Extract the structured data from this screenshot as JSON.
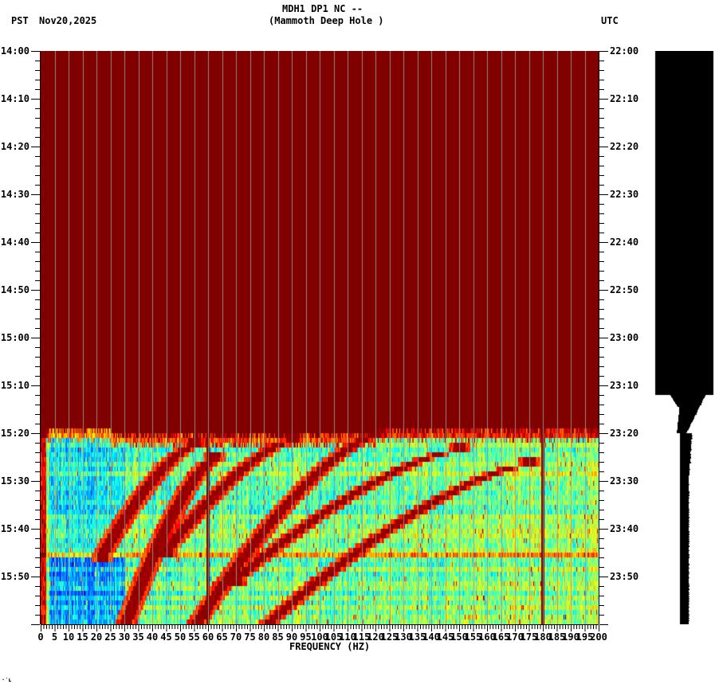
{
  "header": {
    "title_line1": "MDH1 DP1 NC --",
    "title_line2": "(Mammoth Deep Hole )",
    "left_timezone": "PST",
    "date": "Nov20,2025",
    "right_timezone": "UTC"
  },
  "footer": {
    "corner_mark": "·′ʟ"
  },
  "chart_data": {
    "type": "heatmap",
    "title": "MDH1 DP1 NC -- (Mammoth Deep Hole )",
    "xlabel": "FREQUENCY (HZ)",
    "ylabel_left": "PST",
    "ylabel_right": "UTC",
    "xlim": [
      0,
      200
    ],
    "x_ticks": [
      0,
      5,
      10,
      15,
      20,
      25,
      30,
      35,
      40,
      45,
      50,
      55,
      60,
      65,
      70,
      75,
      80,
      85,
      90,
      95,
      100,
      105,
      110,
      115,
      120,
      125,
      130,
      135,
      140,
      145,
      150,
      155,
      160,
      165,
      170,
      175,
      180,
      185,
      190,
      195,
      200
    ],
    "x_minor_tick_step": 1,
    "y_ticks_left": [
      "14:00",
      "14:10",
      "14:20",
      "14:30",
      "14:40",
      "14:50",
      "15:00",
      "15:10",
      "15:20",
      "15:30",
      "15:40",
      "15:50"
    ],
    "y_ticks_right": [
      "22:00",
      "22:10",
      "22:20",
      "22:30",
      "22:40",
      "22:50",
      "23:00",
      "23:10",
      "23:20",
      "23:30",
      "23:40",
      "23:50"
    ],
    "y_minor_tick_step_min": 2,
    "time_span_min": 120,
    "grid": "vertical lines every 5 Hz",
    "colormap": "jet",
    "saturated_color": "#800000",
    "no_data_until_min": 78,
    "data_onset_min": 78,
    "onset_ragged_low_freq_min": 84,
    "persistent_lines_hz": [
      60,
      180
    ],
    "harmonic_sweeps": [
      {
        "start_hz": 22,
        "end_hz": 55,
        "t_start_min": 105,
        "t_end_min": 82
      },
      {
        "start_hz": 30,
        "end_hz": 62,
        "t_start_min": 120,
        "t_end_min": 85
      },
      {
        "start_hz": 45,
        "end_hz": 90,
        "t_start_min": 104,
        "t_end_min": 81
      },
      {
        "start_hz": 55,
        "end_hz": 120,
        "t_start_min": 120,
        "t_end_min": 80
      },
      {
        "start_hz": 70,
        "end_hz": 150,
        "t_start_min": 110,
        "t_end_min": 83
      },
      {
        "start_hz": 80,
        "end_hz": 175,
        "t_start_min": 120,
        "t_end_min": 86
      }
    ],
    "horizontal_band_min": 105,
    "waveform_panel": {
      "description": "black amplitude envelope: full width until ~15:15, then narrow trace",
      "full_width_until_min": 72,
      "narrow_after_min": 80
    }
  }
}
